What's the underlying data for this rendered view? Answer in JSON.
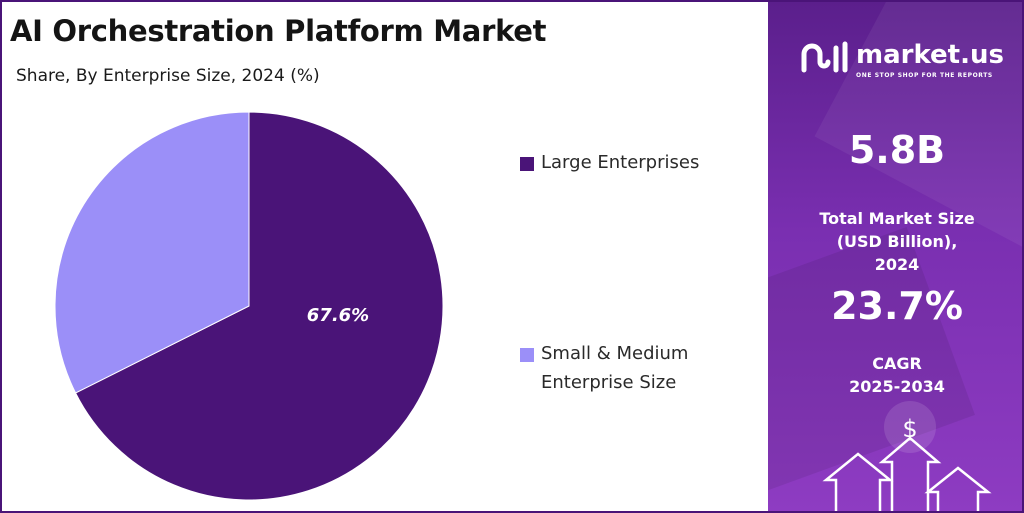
{
  "title": "AI Orchestration Platform Market",
  "subtitle": "Share, By Enterprise Size, 2024 (%)",
  "colors": {
    "large": "#4a1478",
    "small": "#9b8ff8",
    "accent": "#5b1f8c"
  },
  "chart_data": {
    "type": "pie",
    "title": "AI Orchestration Platform Market",
    "subtitle": "Share, By Enterprise Size, 2024 (%)",
    "categories": [
      "Large Enterprises",
      "Small & Medium Enterprise Size"
    ],
    "values": [
      67.6,
      32.4
    ],
    "data_labels": [
      "67.6%",
      ""
    ],
    "legend_position": "right"
  },
  "legend": {
    "items": [
      {
        "label": "Large Enterprises"
      },
      {
        "label": "Small & Medium Enterprise Size"
      }
    ]
  },
  "sidebar": {
    "brand": "market.us",
    "tagline": "ONE STOP SHOP FOR THE REPORTS",
    "market_size_value": "5.8B",
    "market_size_label": "Total Market Size (USD Billion), 2024",
    "cagr_value": "23.7%",
    "cagr_label": "CAGR",
    "cagr_period": "2025-2034"
  }
}
